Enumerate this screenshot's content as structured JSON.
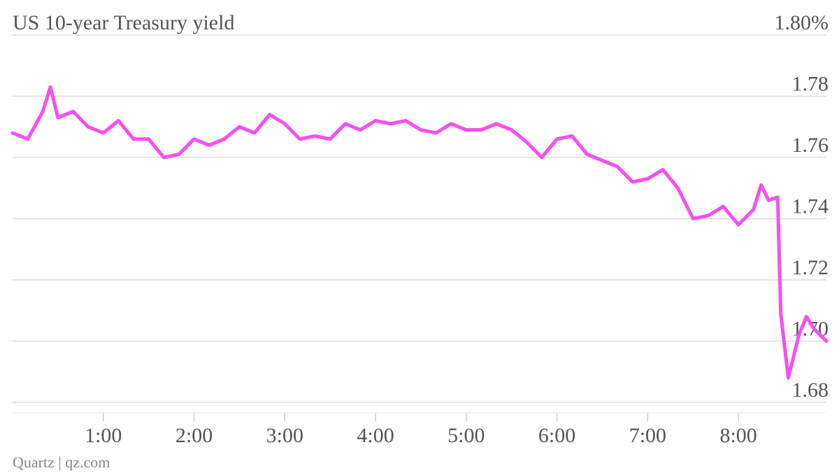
{
  "chart_data": {
    "type": "line",
    "title": "US 10-year Treasury yield",
    "source": "Quartz | qz.com",
    "x": [
      0,
      0.167,
      0.333,
      0.417,
      0.5,
      0.667,
      0.833,
      1.0,
      1.167,
      1.333,
      1.5,
      1.667,
      1.833,
      2.0,
      2.167,
      2.333,
      2.5,
      2.667,
      2.833,
      3.0,
      3.167,
      3.333,
      3.5,
      3.667,
      3.833,
      4.0,
      4.167,
      4.333,
      4.5,
      4.667,
      4.833,
      5.0,
      5.167,
      5.333,
      5.5,
      5.667,
      5.833,
      6.0,
      6.167,
      6.333,
      6.5,
      6.667,
      6.833,
      7.0,
      7.167,
      7.333,
      7.5,
      7.667,
      7.833,
      8.0,
      8.167,
      8.25,
      8.333,
      8.433,
      8.467,
      8.55,
      8.667,
      8.75,
      8.833,
      8.97
    ],
    "series": [
      {
        "name": "US 10-year Treasury yield",
        "color": "#f550ef",
        "values": [
          1.768,
          1.766,
          1.775,
          1.783,
          1.773,
          1.775,
          1.77,
          1.768,
          1.772,
          1.766,
          1.766,
          1.76,
          1.761,
          1.766,
          1.764,
          1.766,
          1.77,
          1.768,
          1.774,
          1.771,
          1.766,
          1.767,
          1.766,
          1.771,
          1.769,
          1.772,
          1.771,
          1.772,
          1.769,
          1.768,
          1.771,
          1.769,
          1.769,
          1.771,
          1.769,
          1.765,
          1.76,
          1.766,
          1.767,
          1.761,
          1.759,
          1.757,
          1.752,
          1.753,
          1.756,
          1.75,
          1.74,
          1.741,
          1.744,
          1.738,
          1.743,
          1.751,
          1.746,
          1.747,
          1.709,
          1.688,
          1.702,
          1.708,
          1.704,
          1.7
        ]
      }
    ],
    "xlim": [
      0,
      8.97
    ],
    "xticks": [
      {
        "value": 1,
        "label": "1:00"
      },
      {
        "value": 2,
        "label": "2:00"
      },
      {
        "value": 3,
        "label": "3:00"
      },
      {
        "value": 4,
        "label": "4:00"
      },
      {
        "value": 5,
        "label": "5:00"
      },
      {
        "value": 6,
        "label": "6:00"
      },
      {
        "value": 7,
        "label": "7:00"
      },
      {
        "value": 8,
        "label": "8:00"
      }
    ],
    "ylim": [
      1.68,
      1.8
    ],
    "yticks": [
      {
        "value": 1.8,
        "label": "1.80%"
      },
      1.78,
      1.76,
      1.74,
      1.72,
      {
        "value": 1.7,
        "label": "1.70"
      },
      1.68
    ],
    "grid": true
  }
}
